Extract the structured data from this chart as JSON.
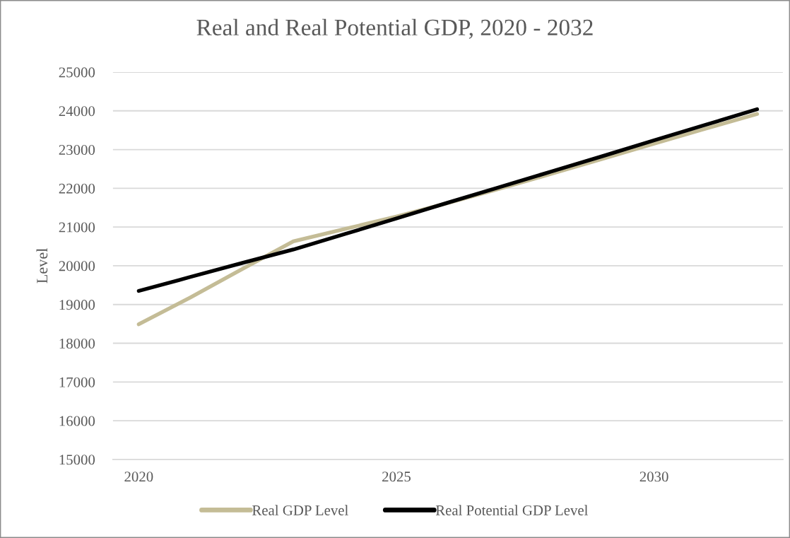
{
  "chart_data": {
    "type": "line",
    "title": "Real and Real Potential GDP, 2020 - 2032",
    "ylabel": "Level",
    "x": [
      2020,
      2021,
      2022,
      2023,
      2024,
      2025,
      2026,
      2027,
      2028,
      2029,
      2030,
      2031,
      2032
    ],
    "series": [
      {
        "name": "Real GDP Level",
        "color": "#c4bc96",
        "values": [
          18490,
          19180,
          19910,
          20630,
          20950,
          21270,
          21620,
          21990,
          22370,
          22760,
          23150,
          23540,
          23920
        ]
      },
      {
        "name": "Real Potential GDP Level",
        "color": "#000000",
        "values": [
          19350,
          19710,
          20070,
          20420,
          20820,
          21220,
          21630,
          22030,
          22430,
          22830,
          23240,
          23640,
          24040
        ]
      }
    ],
    "xlim": [
      2019.5,
      2032.5
    ],
    "xticks": [
      2020,
      2025,
      2030
    ],
    "ylim": [
      15000,
      25000
    ],
    "yticks": [
      15000,
      16000,
      17000,
      18000,
      19000,
      20000,
      21000,
      22000,
      23000,
      24000,
      25000
    ],
    "grid": "y",
    "legend": "bottom",
    "marker": "none",
    "line_style": "solid"
  }
}
